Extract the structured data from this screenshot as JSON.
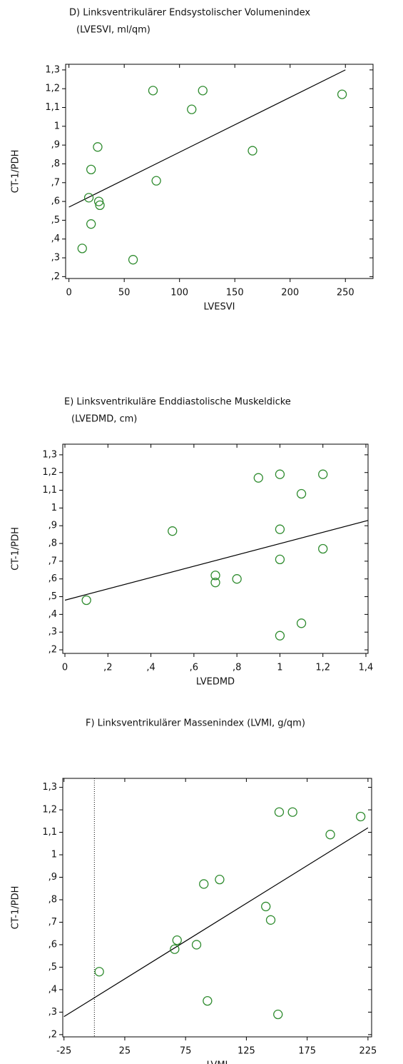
{
  "chart_data": [
    {
      "type": "scatter",
      "title": "D) Linksventrikulärer Endsystolischer Volumenindex",
      "subtitle": "(LVESVI, ml/qm)",
      "x_label": "LVESVI",
      "y_label": "CT-1/PDH",
      "color": "#2e8b2e",
      "x": [
        76,
        121,
        111,
        247,
        26,
        166,
        20,
        79,
        18,
        27,
        28,
        20,
        12,
        58
      ],
      "y": [
        1.19,
        1.19,
        1.09,
        1.17,
        0.89,
        0.87,
        0.77,
        0.71,
        0.62,
        0.6,
        0.58,
        0.48,
        0.35,
        0.29
      ],
      "fit": {
        "x": [
          0,
          250
        ],
        "y": [
          0.57,
          1.3
        ]
      },
      "xlim": [
        -3,
        275
      ],
      "ylim": [
        0.19,
        1.33
      ],
      "xticks": [
        0,
        50,
        100,
        150,
        200,
        250
      ],
      "yticks": [
        {
          "value": 0.2,
          "label": ",2"
        },
        {
          "value": 0.3,
          "label": ",3"
        },
        {
          "value": 0.4,
          "label": ",4"
        },
        {
          "value": 0.5,
          "label": ",5"
        },
        {
          "value": 0.6,
          "label": ",6"
        },
        {
          "value": 0.7,
          "label": ",7"
        },
        {
          "value": 0.8,
          "label": ",8"
        },
        {
          "value": 0.9,
          "label": ",9"
        },
        1,
        {
          "value": 1.1,
          "label": "1,1"
        },
        {
          "value": 1.2,
          "label": "1,2"
        },
        {
          "value": 1.3,
          "label": "1,3"
        }
      ]
    },
    {
      "type": "scatter",
      "title": "E) Linksventrikuläre Enddiastolische Muskeldicke",
      "subtitle": "(LVEDMD, cm)",
      "x_label": "LVEDMD",
      "y_label": "CT-1/PDH",
      "color": "#2e8b2e",
      "x": [
        0.9,
        1.0,
        1.1,
        1.2,
        0.5,
        1.0,
        1.0,
        1.2,
        0.7,
        0.7,
        0.8,
        0.1,
        1.1,
        1.0
      ],
      "y": [
        1.17,
        1.19,
        1.08,
        1.19,
        0.87,
        0.88,
        0.71,
        0.77,
        0.62,
        0.58,
        0.6,
        0.48,
        0.35,
        0.28
      ],
      "fit": {
        "x": [
          0,
          1.41
        ],
        "y": [
          0.48,
          0.93
        ]
      },
      "xlim": [
        -0.01,
        1.41
      ],
      "ylim": [
        0.18,
        1.36
      ],
      "xticks": [
        0,
        {
          "value": 0.2,
          "label": ",2"
        },
        {
          "value": 0.4,
          "label": ",4"
        },
        {
          "value": 0.6,
          "label": ",6"
        },
        {
          "value": 0.8,
          "label": ",8"
        },
        1,
        {
          "value": 1.2,
          "label": "1,2"
        },
        {
          "value": 1.4,
          "label": "1,4"
        }
      ],
      "yticks": [
        {
          "value": 0.2,
          "label": ",2"
        },
        {
          "value": 0.3,
          "label": ",3"
        },
        {
          "value": 0.4,
          "label": ",4"
        },
        {
          "value": 0.5,
          "label": ",5"
        },
        {
          "value": 0.6,
          "label": ",6"
        },
        {
          "value": 0.7,
          "label": ",7"
        },
        {
          "value": 0.8,
          "label": ",8"
        },
        {
          "value": 0.9,
          "label": ",9"
        },
        1,
        {
          "value": 1.1,
          "label": "1,1"
        },
        {
          "value": 1.2,
          "label": "1,2"
        },
        {
          "value": 1.3,
          "label": "1,3"
        }
      ]
    },
    {
      "type": "scatter",
      "title": "F) Linksventrikulärer Massenindex (LVMI, g/qm)",
      "x_label": "LVMI",
      "y_label": "CT-1/PDH",
      "color": "#2e8b2e",
      "x": [
        152,
        163,
        219,
        194,
        103,
        90,
        141,
        145,
        68,
        66,
        84,
        4,
        93,
        151
      ],
      "y": [
        1.19,
        1.19,
        1.17,
        1.09,
        0.89,
        0.87,
        0.77,
        0.71,
        0.62,
        0.58,
        0.6,
        0.48,
        0.35,
        0.29
      ],
      "fit": {
        "x": [
          -25,
          225
        ],
        "y": [
          0.28,
          1.12
        ]
      },
      "vline": 0,
      "xlim": [
        -26,
        228
      ],
      "ylim": [
        0.19,
        1.34
      ],
      "xticks": [
        -25,
        25,
        75,
        125,
        175,
        225
      ],
      "yticks": [
        {
          "value": 0.2,
          "label": ",2"
        },
        {
          "value": 0.3,
          "label": ",3"
        },
        {
          "value": 0.4,
          "label": ",4"
        },
        {
          "value": 0.5,
          "label": ",5"
        },
        {
          "value": 0.6,
          "label": ",6"
        },
        {
          "value": 0.7,
          "label": ",7"
        },
        {
          "value": 0.8,
          "label": ",8"
        },
        {
          "value": 0.9,
          "label": ",9"
        },
        1,
        {
          "value": 1.1,
          "label": "1,1"
        },
        {
          "value": 1.2,
          "label": "1,2"
        },
        {
          "value": 1.3,
          "label": "1,3"
        }
      ]
    }
  ]
}
